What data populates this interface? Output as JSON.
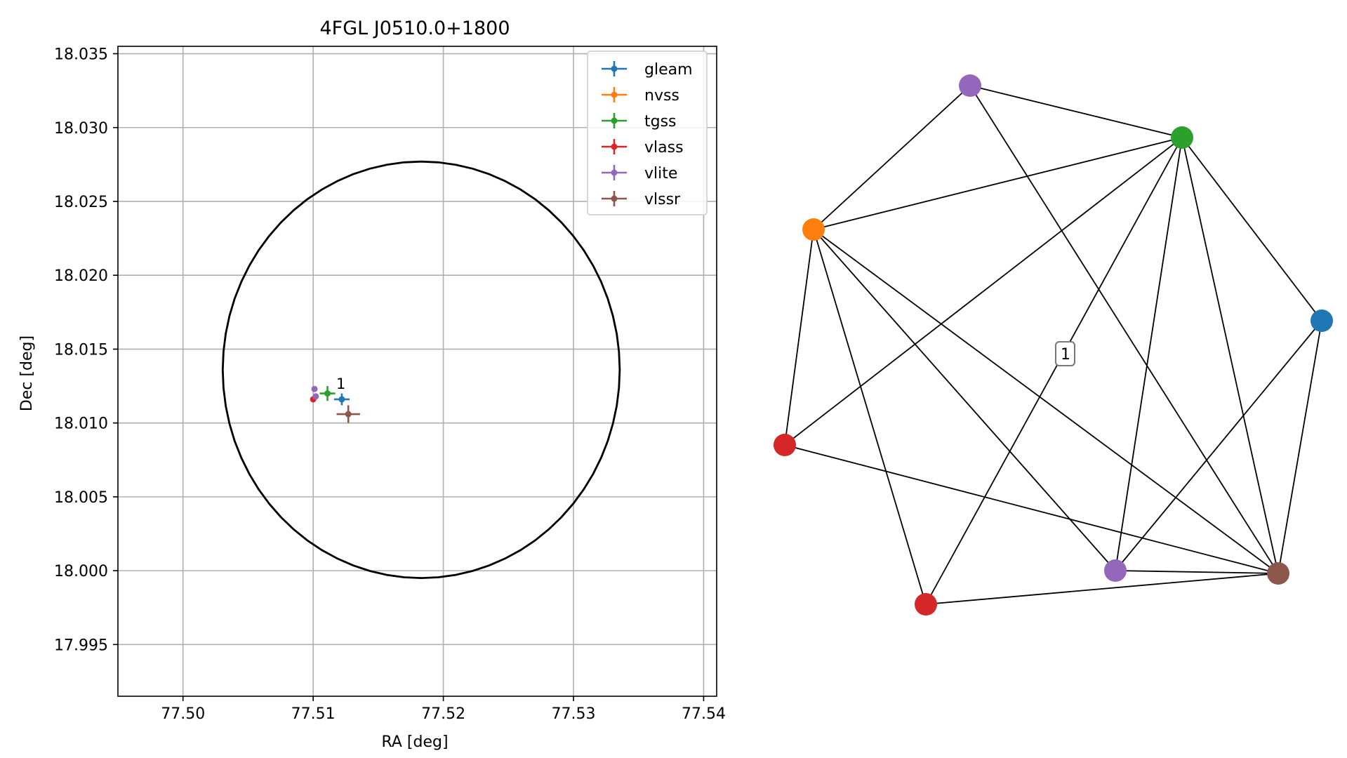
{
  "chart_data": [
    {
      "type": "scatter",
      "title": "4FGL J0510.0+1800",
      "xlabel": "RA [deg]",
      "ylabel": "Dec [deg]",
      "xlim": [
        77.495,
        77.541
      ],
      "ylim": [
        17.9915,
        18.0355
      ],
      "xticks": [
        77.5,
        77.51,
        77.52,
        77.53,
        77.54
      ],
      "xtick_labels": [
        "77.50",
        "77.51",
        "77.52",
        "77.53",
        "77.54"
      ],
      "yticks": [
        17.995,
        18.0,
        18.005,
        18.01,
        18.015,
        18.02,
        18.025,
        18.03,
        18.035
      ],
      "ytick_labels": [
        "17.995",
        "18.000",
        "18.005",
        "18.010",
        "18.015",
        "18.020",
        "18.025",
        "18.030",
        "18.035"
      ],
      "grid": true,
      "legend_position": "top-right",
      "series": [
        {
          "name": "gleam",
          "color": "#1f77b4",
          "points": [
            {
              "x": 77.5122,
              "y": 18.0116,
              "xerr": 0.0006,
              "yerr": 0.0004
            }
          ]
        },
        {
          "name": "nvss",
          "color": "#ff7f0e",
          "points": []
        },
        {
          "name": "tgss",
          "color": "#2ca02c",
          "points": [
            {
              "x": 77.5111,
              "y": 18.012,
              "xerr": 0.0006,
              "yerr": 0.0005
            }
          ]
        },
        {
          "name": "vlass",
          "color": "#d62728",
          "points": [
            {
              "x": 77.51,
              "y": 18.0116,
              "xerr": 0.0001,
              "yerr": 0.0001
            }
          ]
        },
        {
          "name": "vlite",
          "color": "#9467bd",
          "points": [
            {
              "x": 77.5101,
              "y": 18.0123,
              "xerr": 0.0001,
              "yerr": 0.0001
            },
            {
              "x": 77.5102,
              "y": 18.0118,
              "xerr": 0.0001,
              "yerr": 0.0001
            }
          ]
        },
        {
          "name": "vlssr",
          "color": "#8c564b",
          "points": [
            {
              "x": 77.5127,
              "y": 18.0106,
              "xerr": 0.0009,
              "yerr": 0.0006
            }
          ]
        }
      ],
      "ellipse": {
        "center": [
          77.5183,
          18.0136
        ],
        "ra_semi_axis": 0.01525,
        "dec_semi_axis": 0.0141,
        "color": "#000000"
      },
      "annotations": [
        {
          "text": "1",
          "x": 77.5115,
          "y": 18.0124
        }
      ]
    },
    {
      "type": "network",
      "nodes": [
        {
          "id": "purple-top",
          "color": "#9467bd"
        },
        {
          "id": "green",
          "color": "#2ca02c"
        },
        {
          "id": "orange",
          "color": "#ff7f0e"
        },
        {
          "id": "blue",
          "color": "#1f77b4"
        },
        {
          "id": "red-left",
          "color": "#d62728"
        },
        {
          "id": "purple-bottom",
          "color": "#9467bd"
        },
        {
          "id": "brown",
          "color": "#8c564b"
        },
        {
          "id": "red-bottom",
          "color": "#d62728"
        }
      ],
      "edges": [
        [
          "purple-top",
          "green"
        ],
        [
          "purple-top",
          "orange"
        ],
        [
          "purple-top",
          "brown"
        ],
        [
          "green",
          "orange"
        ],
        [
          "green",
          "red-left"
        ],
        [
          "green",
          "red-bottom"
        ],
        [
          "green",
          "purple-bottom"
        ],
        [
          "green",
          "blue"
        ],
        [
          "green",
          "brown"
        ],
        [
          "orange",
          "red-left"
        ],
        [
          "orange",
          "red-bottom"
        ],
        [
          "orange",
          "purple-bottom"
        ],
        [
          "orange",
          "brown"
        ],
        [
          "red-left",
          "brown"
        ],
        [
          "blue",
          "purple-bottom"
        ],
        [
          "blue",
          "brown"
        ],
        [
          "purple-bottom",
          "brown"
        ],
        [
          "red-bottom",
          "brown"
        ]
      ],
      "label": "1"
    }
  ]
}
